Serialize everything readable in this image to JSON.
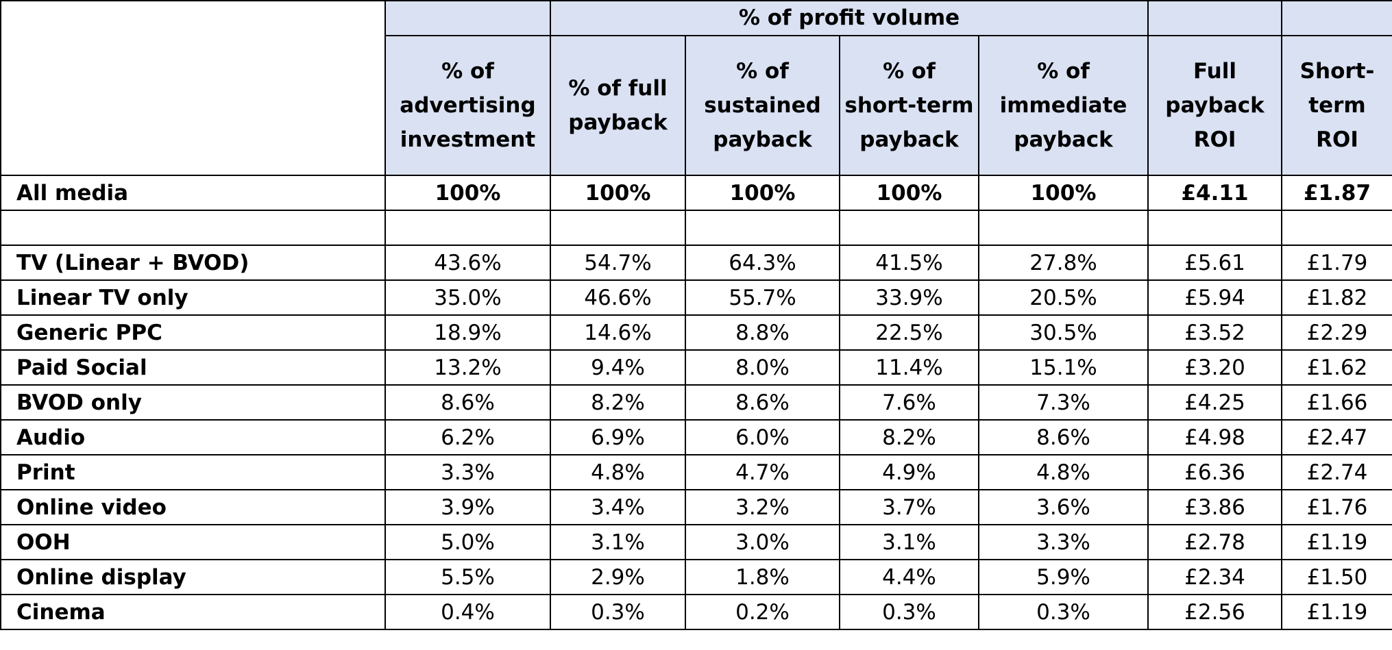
{
  "header": {
    "group_label": "% of profit volume",
    "columns": [
      "% of advertising investment",
      "% of full payback",
      "% of sustained payback",
      "% of short-term payback",
      "% of immediate payback",
      "Full payback ROI",
      "Short-term ROI"
    ]
  },
  "total": {
    "label": "All media",
    "cells": [
      "100%",
      "100%",
      "100%",
      "100%",
      "100%",
      "£4.11",
      "£1.87"
    ]
  },
  "rows": [
    {
      "label": "TV (Linear + BVOD)",
      "cells": [
        "43.6%",
        "54.7%",
        "64.3%",
        "41.5%",
        "27.8%",
        "£5.61",
        "£1.79"
      ]
    },
    {
      "label": "Linear TV only",
      "cells": [
        "35.0%",
        "46.6%",
        "55.7%",
        "33.9%",
        "20.5%",
        "£5.94",
        "£1.82"
      ]
    },
    {
      "label": "Generic PPC",
      "cells": [
        "18.9%",
        "14.6%",
        "8.8%",
        "22.5%",
        "30.5%",
        "£3.52",
        "£2.29"
      ]
    },
    {
      "label": "Paid Social",
      "cells": [
        "13.2%",
        "9.4%",
        "8.0%",
        "11.4%",
        "15.1%",
        "£3.20",
        "£1.62"
      ]
    },
    {
      "label": "BVOD only",
      "cells": [
        "8.6%",
        "8.2%",
        "8.6%",
        "7.6%",
        "7.3%",
        "£4.25",
        "£1.66"
      ]
    },
    {
      "label": "Audio",
      "cells": [
        "6.2%",
        "6.9%",
        "6.0%",
        "8.2%",
        "8.6%",
        "£4.98",
        "£2.47"
      ]
    },
    {
      "label": "Print",
      "cells": [
        "3.3%",
        "4.8%",
        "4.7%",
        "4.9%",
        "4.8%",
        "£6.36",
        "£2.74"
      ]
    },
    {
      "label": "Online video",
      "cells": [
        "3.9%",
        "3.4%",
        "3.2%",
        "3.7%",
        "3.6%",
        "£3.86",
        "£1.76"
      ]
    },
    {
      "label": "OOH",
      "cells": [
        "5.0%",
        "3.1%",
        "3.0%",
        "3.1%",
        "3.3%",
        "£2.78",
        "£1.19"
      ]
    },
    {
      "label": "Online display",
      "cells": [
        "5.5%",
        "2.9%",
        "1.8%",
        "4.4%",
        "5.9%",
        "£2.34",
        "£1.50"
      ]
    },
    {
      "label": "Cinema",
      "cells": [
        "0.4%",
        "0.3%",
        "0.2%",
        "0.3%",
        "0.3%",
        "£2.56",
        "£1.19"
      ]
    }
  ]
}
